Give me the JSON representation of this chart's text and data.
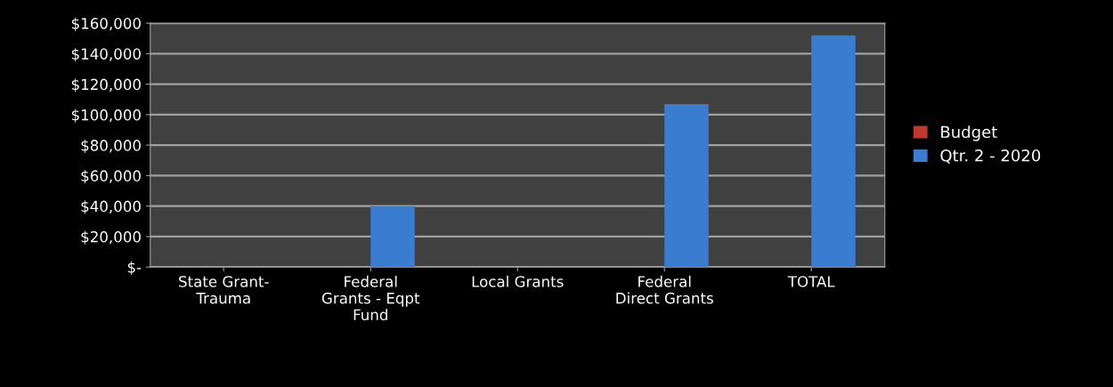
{
  "chart_data": {
    "type": "bar",
    "categories": [
      "State Grant-\nTrauma",
      "Federal\nGrants - Eqpt\nFund",
      "Local Grants",
      "Federal\nDirect Grants",
      "TOTAL"
    ],
    "series": [
      {
        "name": "Budget",
        "color": "#c0392f",
        "values": [
          0,
          0,
          0,
          0,
          0
        ]
      },
      {
        "name": "Qtr. 2 - 2020",
        "color": "#3a7dd0",
        "values": [
          0,
          40000,
          0,
          107000,
          152000
        ]
      }
    ],
    "ylim": [
      0,
      160000
    ],
    "yticks": [
      {
        "value": 0,
        "label": "$-"
      },
      {
        "value": 20000,
        "label": "$20,000"
      },
      {
        "value": 40000,
        "label": "$40,000"
      },
      {
        "value": 60000,
        "label": "$60,000"
      },
      {
        "value": 80000,
        "label": "$80,000"
      },
      {
        "value": 100000,
        "label": "$100,000"
      },
      {
        "value": 120000,
        "label": "$120,000"
      },
      {
        "value": 140000,
        "label": "$140,000"
      },
      {
        "value": 160000,
        "label": "$160,000"
      }
    ],
    "grid": "y",
    "legend": "right"
  }
}
